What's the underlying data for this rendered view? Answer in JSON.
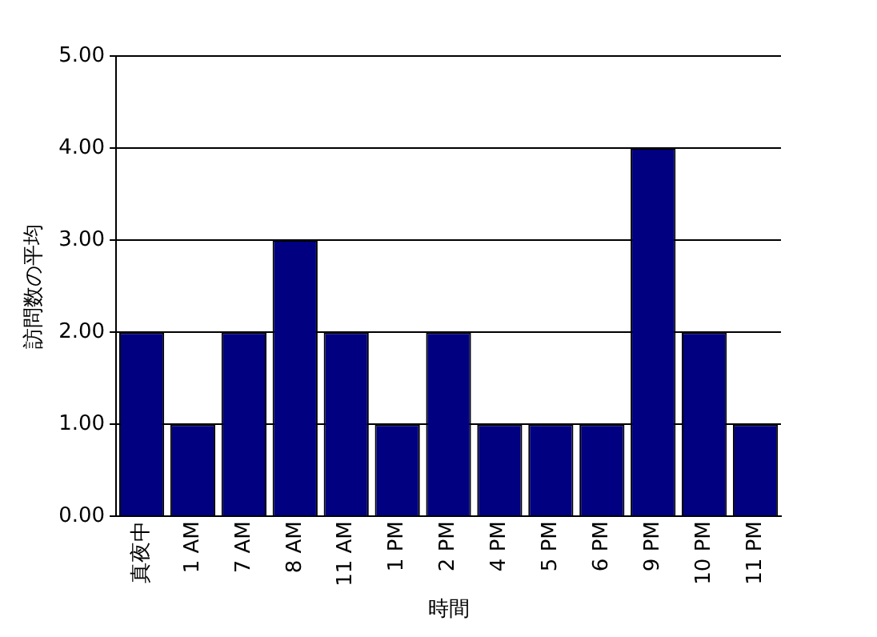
{
  "chart_data": {
    "type": "bar",
    "xlabel": "時間",
    "ylabel": "訪問数の平均",
    "categories": [
      "真夜中",
      "1 AM",
      "7 AM",
      "8 AM",
      "11 AM",
      "1 PM",
      "2 PM",
      "4 PM",
      "5 PM",
      "6 PM",
      "9 PM",
      "10 PM",
      "11 PM"
    ],
    "values": [
      2,
      1,
      2,
      3,
      2,
      1,
      2,
      1,
      1,
      1,
      4,
      2,
      1
    ],
    "color": "#000080",
    "ylim": [
      0,
      5
    ],
    "yticks": [
      {
        "value": 0,
        "label": "0.00"
      },
      {
        "value": 1,
        "label": "1.00"
      },
      {
        "value": 2,
        "label": "2.00"
      },
      {
        "value": 3,
        "label": "3.00"
      },
      {
        "value": 4,
        "label": "4.00"
      },
      {
        "value": 5,
        "label": "5.00"
      }
    ],
    "grid": "y",
    "legend": false
  }
}
